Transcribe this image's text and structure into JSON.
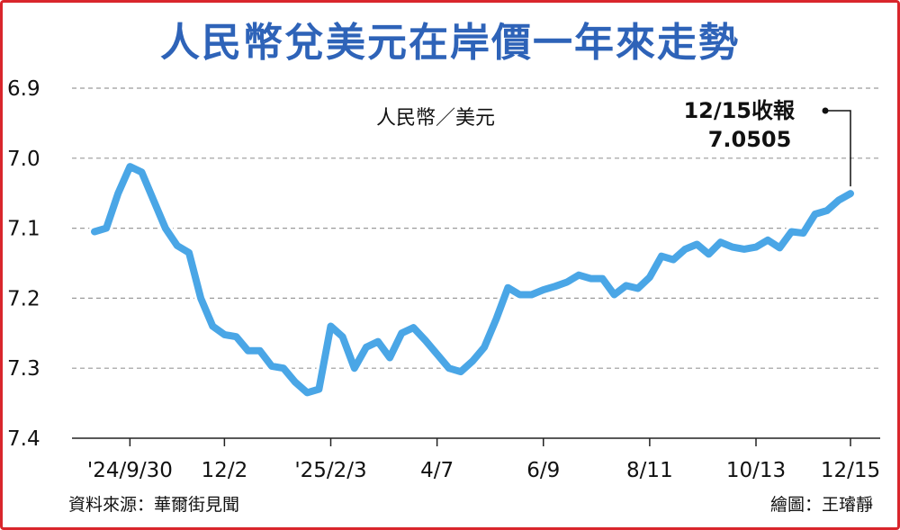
{
  "chart_data": {
    "type": "line",
    "title": "人民幣兌美元在岸價一年來走勢",
    "unit_label": "人民幣／美元",
    "y_axis": {
      "inverted": true,
      "ylim": [
        6.9,
        7.4
      ],
      "ticks": [
        "6.9",
        "7.0",
        "7.1",
        "7.2",
        "7.3",
        "7.4"
      ]
    },
    "grid": "horizontal dashed",
    "x_tick_labels": [
      "'24/9/30",
      "12/2",
      "'25/2/3",
      "4/7",
      "6/9",
      "8/11",
      "10/13",
      "12/15"
    ],
    "series": [
      {
        "color": "#4aa6e6",
        "points": [
          [
            0,
            7.105
          ],
          [
            1,
            7.1
          ],
          [
            2,
            7.05
          ],
          [
            3,
            7.012
          ],
          [
            4,
            7.02
          ],
          [
            5,
            7.06
          ],
          [
            6,
            7.1
          ],
          [
            7,
            7.125
          ],
          [
            8,
            7.135
          ],
          [
            9,
            7.2
          ],
          [
            10,
            7.24
          ],
          [
            11,
            7.252
          ],
          [
            12,
            7.255
          ],
          [
            13,
            7.275
          ],
          [
            14,
            7.275
          ],
          [
            15,
            7.297
          ],
          [
            16,
            7.3
          ],
          [
            17,
            7.32
          ],
          [
            18,
            7.335
          ],
          [
            19,
            7.33
          ],
          [
            20,
            7.24
          ],
          [
            21,
            7.255
          ],
          [
            22,
            7.3
          ],
          [
            23,
            7.27
          ],
          [
            24,
            7.262
          ],
          [
            25,
            7.285
          ],
          [
            26,
            7.25
          ],
          [
            27,
            7.242
          ],
          [
            28,
            7.26
          ],
          [
            29,
            7.28
          ],
          [
            30,
            7.3
          ],
          [
            31,
            7.305
          ],
          [
            32,
            7.29
          ],
          [
            33,
            7.27
          ],
          [
            34,
            7.23
          ],
          [
            35,
            7.185
          ],
          [
            36,
            7.195
          ],
          [
            37,
            7.195
          ],
          [
            38,
            7.188
          ],
          [
            39,
            7.183
          ],
          [
            40,
            7.177
          ],
          [
            41,
            7.167
          ],
          [
            42,
            7.172
          ],
          [
            43,
            7.172
          ],
          [
            44,
            7.195
          ],
          [
            45,
            7.182
          ],
          [
            46,
            7.186
          ],
          [
            47,
            7.17
          ],
          [
            48,
            7.14
          ],
          [
            49,
            7.145
          ],
          [
            50,
            7.13
          ],
          [
            51,
            7.123
          ],
          [
            52,
            7.137
          ],
          [
            53,
            7.12
          ],
          [
            54,
            7.127
          ],
          [
            55,
            7.13
          ],
          [
            56,
            7.127
          ],
          [
            57,
            7.117
          ],
          [
            58,
            7.128
          ],
          [
            59,
            7.105
          ],
          [
            60,
            7.107
          ],
          [
            61,
            7.08
          ],
          [
            62,
            7.075
          ],
          [
            63,
            7.06
          ],
          [
            64,
            7.0505
          ]
        ]
      }
    ],
    "x_tick_positions": [
      3,
      11,
      20,
      29,
      38,
      47,
      56,
      64
    ],
    "annotation": {
      "label": "12/15收報",
      "value": "7.0505"
    }
  },
  "footer": {
    "source": "資料來源：華爾街見聞",
    "credit": "繪圖：王璿靜"
  }
}
